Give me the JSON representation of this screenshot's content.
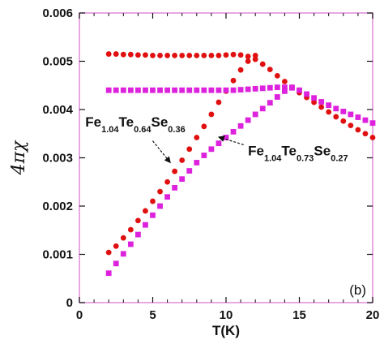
{
  "chart_data": {
    "type": "scatter",
    "title": "",
    "panel_label": "(b)",
    "xlabel": "T(K)",
    "ylabel": "4πχ",
    "xlim": [
      0,
      20
    ],
    "ylim": [
      0,
      0.006
    ],
    "xticks": [
      0,
      5,
      10,
      15,
      20
    ],
    "yticks": [
      0,
      0.001,
      0.002,
      0.003,
      0.004,
      0.005,
      0.006
    ],
    "ytick_labels": [
      "0",
      "0.001",
      "0.002",
      "0.003",
      "0.004",
      "0.005",
      "0.006"
    ],
    "grid": false,
    "frame_color": "#e08ad8",
    "series": [
      {
        "marker": "circle",
        "color": "#e01010",
        "fc": [
          [
            2.0,
            0.00104
          ],
          [
            2.5,
            0.00117
          ],
          [
            3.0,
            0.00134
          ],
          [
            3.5,
            0.00151
          ],
          [
            4.0,
            0.0017
          ],
          [
            4.5,
            0.0019
          ],
          [
            5.0,
            0.0021
          ],
          [
            5.5,
            0.0023
          ],
          [
            6.0,
            0.0025
          ],
          [
            6.5,
            0.00272
          ],
          [
            7.0,
            0.00295
          ],
          [
            7.5,
            0.00318
          ],
          [
            8.0,
            0.00342
          ],
          [
            8.5,
            0.00365
          ],
          [
            9.0,
            0.0039
          ],
          [
            9.5,
            0.00415
          ],
          [
            10.0,
            0.00438
          ],
          [
            10.5,
            0.0046
          ],
          [
            11.0,
            0.00482
          ],
          [
            11.5,
            0.005
          ],
          [
            12.0,
            0.00512
          ]
        ],
        "zfc": [
          [
            2.0,
            0.00515
          ],
          [
            2.5,
            0.00515
          ],
          [
            3.0,
            0.00514
          ],
          [
            3.5,
            0.00514
          ],
          [
            4.0,
            0.00513
          ],
          [
            4.5,
            0.00513
          ],
          [
            5.0,
            0.00512
          ],
          [
            5.5,
            0.00512
          ],
          [
            6.0,
            0.00512
          ],
          [
            6.5,
            0.00512
          ],
          [
            7.0,
            0.00512
          ],
          [
            7.5,
            0.00512
          ],
          [
            8.0,
            0.00512
          ],
          [
            8.5,
            0.00512
          ],
          [
            9.0,
            0.00512
          ],
          [
            9.5,
            0.00512
          ],
          [
            10.0,
            0.00513
          ],
          [
            10.5,
            0.00514
          ],
          [
            11.0,
            0.00513
          ],
          [
            11.5,
            0.0051
          ],
          [
            12.0,
            0.00504
          ],
          [
            12.5,
            0.00494
          ],
          [
            13.0,
            0.00483
          ],
          [
            13.5,
            0.0047
          ],
          [
            14.0,
            0.00458
          ],
          [
            14.5,
            0.00446
          ],
          [
            15.0,
            0.00435
          ],
          [
            15.5,
            0.00425
          ],
          [
            16.0,
            0.00415
          ],
          [
            16.5,
            0.00405
          ],
          [
            17.0,
            0.00395
          ],
          [
            17.5,
            0.00385
          ],
          [
            18.0,
            0.00376
          ],
          [
            18.5,
            0.00367
          ],
          [
            19.0,
            0.00358
          ],
          [
            19.5,
            0.0035
          ],
          [
            20.0,
            0.00342
          ]
        ]
      },
      {
        "marker": "square",
        "color": "#dd22dd",
        "fc": [
          [
            2.0,
            0.00061
          ],
          [
            2.5,
            0.00081
          ],
          [
            3.0,
            0.00101
          ],
          [
            3.5,
            0.00121
          ],
          [
            4.0,
            0.00141
          ],
          [
            4.5,
            0.00161
          ],
          [
            5.0,
            0.00181
          ],
          [
            5.5,
            0.002
          ],
          [
            6.0,
            0.00219
          ],
          [
            6.5,
            0.00238
          ],
          [
            7.0,
            0.00256
          ],
          [
            7.5,
            0.00273
          ],
          [
            8.0,
            0.0029
          ],
          [
            8.5,
            0.00305
          ],
          [
            9.0,
            0.00318
          ],
          [
            9.5,
            0.0033
          ],
          [
            10.0,
            0.00342
          ],
          [
            10.5,
            0.00354
          ],
          [
            11.0,
            0.00366
          ],
          [
            11.5,
            0.00378
          ],
          [
            12.0,
            0.0039
          ],
          [
            12.5,
            0.00402
          ],
          [
            13.0,
            0.00414
          ],
          [
            13.5,
            0.00426
          ],
          [
            14.0,
            0.00438
          ],
          [
            14.5,
            0.00446
          ]
        ],
        "zfc": [
          [
            2.0,
            0.0044
          ],
          [
            2.5,
            0.0044
          ],
          [
            3.0,
            0.0044
          ],
          [
            3.5,
            0.0044
          ],
          [
            4.0,
            0.0044
          ],
          [
            4.5,
            0.0044
          ],
          [
            5.0,
            0.0044
          ],
          [
            5.5,
            0.0044
          ],
          [
            6.0,
            0.0044
          ],
          [
            6.5,
            0.0044
          ],
          [
            7.0,
            0.0044
          ],
          [
            7.5,
            0.0044
          ],
          [
            8.0,
            0.0044
          ],
          [
            8.5,
            0.0044
          ],
          [
            9.0,
            0.0044
          ],
          [
            9.5,
            0.0044
          ],
          [
            10.0,
            0.0044
          ],
          [
            10.5,
            0.0044
          ],
          [
            11.0,
            0.00441
          ],
          [
            11.5,
            0.00442
          ],
          [
            12.0,
            0.00443
          ],
          [
            12.5,
            0.00444
          ],
          [
            13.0,
            0.00445
          ],
          [
            13.5,
            0.00446
          ],
          [
            14.0,
            0.00446
          ],
          [
            14.5,
            0.00445
          ],
          [
            15.0,
            0.0044
          ],
          [
            15.5,
            0.00432
          ],
          [
            16.0,
            0.00424
          ],
          [
            16.5,
            0.00416
          ],
          [
            17.0,
            0.00409
          ],
          [
            17.5,
            0.00402
          ],
          [
            18.0,
            0.00396
          ],
          [
            18.5,
            0.0039
          ],
          [
            19.0,
            0.00384
          ],
          [
            19.5,
            0.00378
          ],
          [
            20.0,
            0.00372
          ]
        ]
      }
    ],
    "annotations": [
      {
        "main": [
          "Fe",
          "Te",
          "Se"
        ],
        "subs": [
          "1.04",
          "0.64",
          "0.36"
        ],
        "anchor": [
          0.4,
          0.00365
        ],
        "arrow_from": [
          5.0,
          0.00335
        ],
        "arrow_to": [
          6.2,
          0.0029
        ],
        "arrow_style": "dashed"
      },
      {
        "main": [
          "Fe",
          "Te",
          "Se"
        ],
        "subs": [
          "1.04",
          "0.73",
          "0.27"
        ],
        "anchor": [
          11.5,
          0.00305
        ],
        "arrow_from": [
          11.2,
          0.00327
        ],
        "arrow_to": [
          9.5,
          0.00343
        ],
        "arrow_style": "dashed"
      }
    ]
  }
}
